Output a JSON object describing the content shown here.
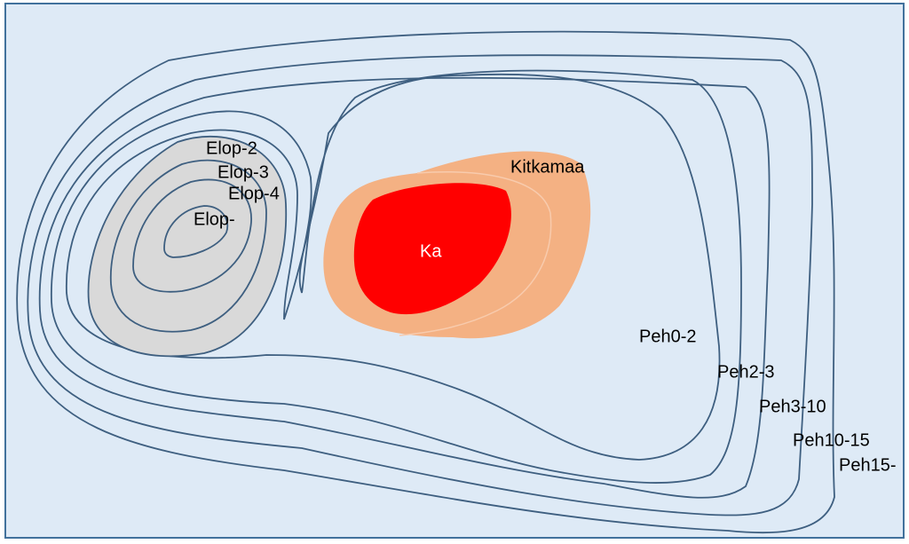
{
  "labels": {
    "elop_2": "Elop-2",
    "elop_3": "Elop-3",
    "elop_4": "Elop-4",
    "elop_core": "Elop-",
    "kitkamaa": "Kitkamaa",
    "ka": "Ka",
    "peh0_2": "Peh0-2",
    "peh2_3": "Peh2-3",
    "peh3_10": "Peh3-10",
    "peh10_15": "Peh10-15",
    "peh15": "Peh15-"
  }
}
